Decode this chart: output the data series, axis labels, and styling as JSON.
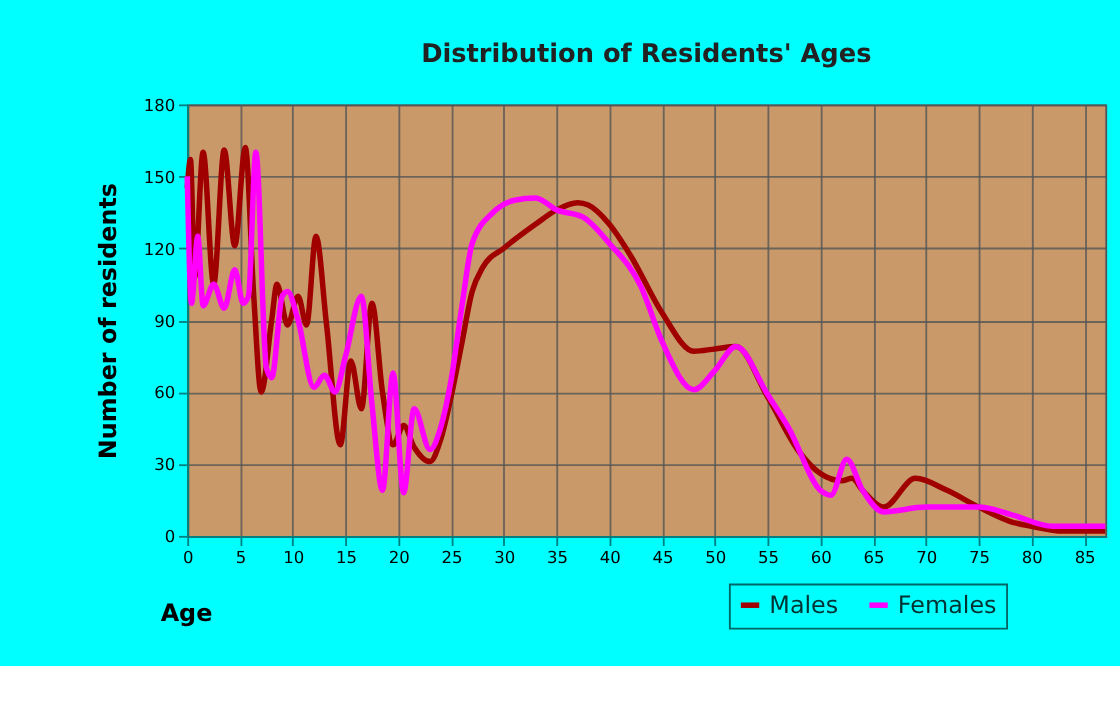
{
  "chart_data": {
    "type": "line",
    "title": "Distribution of Residents' Ages",
    "xlabel": "Age",
    "ylabel": "Number of residents",
    "xlim": [
      0,
      87
    ],
    "xticks": [
      0,
      5,
      10,
      15,
      20,
      25,
      30,
      35,
      40,
      45,
      50,
      55,
      60,
      65,
      70,
      75,
      80,
      85
    ],
    "ylim": [
      0,
      180
    ],
    "yticks": [
      0,
      30,
      60,
      90,
      120,
      150,
      180
    ],
    "grid": true,
    "legend": "bottom",
    "line_style": "solid",
    "marker": "none",
    "series": [
      {
        "name": "Males",
        "color": "#a00000",
        "x": [
          0,
          0.3,
          0.7,
          1.5,
          2.5,
          3.5,
          4.5,
          5.5,
          6.3,
          7,
          8,
          8.5,
          9.5,
          10.5,
          11.3,
          12.2,
          13.2,
          14.5,
          15.5,
          16.5,
          17.5,
          18.5,
          19.5,
          20.5,
          21.5,
          23,
          24,
          25,
          26,
          27,
          28,
          30,
          33,
          35,
          37,
          38,
          40,
          42,
          45,
          48,
          50,
          52,
          55,
          58,
          60,
          62,
          63,
          64,
          66,
          69,
          72,
          75,
          78,
          80,
          83,
          87
        ],
        "values": [
          145,
          157,
          108,
          160,
          105,
          161,
          121,
          162,
          100,
          60,
          90,
          105,
          88,
          100,
          88,
          125,
          88,
          38,
          73,
          53,
          97,
          60,
          38,
          46,
          37,
          31,
          40,
          58,
          80,
          102,
          112,
          120,
          130,
          136,
          139,
          138,
          130,
          117,
          93,
          77,
          78,
          79,
          58,
          35,
          26,
          23,
          24,
          19,
          12,
          24,
          19,
          12,
          6,
          4,
          2,
          2
        ]
      },
      {
        "name": "Females",
        "color": "#ff00ff",
        "x": [
          0,
          0.4,
          1,
          1.5,
          2.5,
          3.5,
          4.5,
          5.3,
          5.8,
          6.5,
          7.5,
          8,
          9,
          9.5,
          10.5,
          12,
          13,
          14,
          15,
          16.5,
          17.5,
          18.5,
          19.5,
          20.5,
          21.5,
          23,
          24,
          25,
          26,
          27,
          29,
          31,
          33,
          35,
          37.5,
          40,
          43,
          45,
          48,
          50,
          52,
          55,
          57,
          60,
          61,
          62.5,
          64,
          66,
          70,
          75,
          78,
          82,
          87
        ],
        "values": [
          150,
          97,
          125,
          96,
          105,
          95,
          111,
          97,
          100,
          160,
          70,
          66,
          100,
          102,
          90,
          62,
          67,
          60,
          75,
          100,
          55,
          19,
          68,
          18,
          53,
          36,
          45,
          65,
          95,
          122,
          135,
          140,
          141,
          136,
          133,
          122,
          104,
          81,
          61,
          69,
          79,
          59,
          45,
          19,
          17,
          32,
          19,
          10,
          12,
          12,
          9,
          4,
          4
        ]
      }
    ]
  }
}
